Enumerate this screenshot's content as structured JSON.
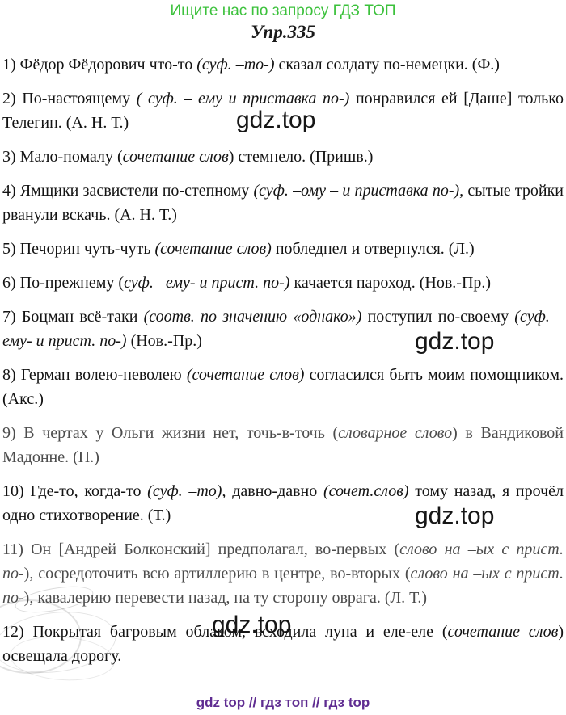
{
  "header": {
    "promo": "Ищите нас по запросу ГДЗ ТОП",
    "title": "Упр.335"
  },
  "watermark_text": "gdz.top",
  "footer": {
    "text": "gdz top  //  гдз топ  //  гдз top"
  },
  "colors": {
    "promo_green": "#3cc13c",
    "footer_purple": "#5f2c91",
    "text_black": "#131313"
  },
  "items": [
    {
      "parts": [
        "1) Фёдор Фёдорович что-то ",
        "(суф. –то-)",
        " сказал солдату по-немецки. (Ф.)"
      ]
    },
    {
      "parts": [
        "2) По-настоящему ",
        "( суф. – ему и приставка по-)",
        " понравился ей [Даше] только Телегин. (А. Н. Т.)"
      ]
    },
    {
      "parts": [
        "3) Мало-помалу (",
        "сочетание слов",
        ") стемнело. (Пришв.)"
      ]
    },
    {
      "parts": [
        "4) Ямщики засвистели по-степному ",
        "(суф. –ому – и приставка по-),",
        " сытые тройки рванули вскачь. (А. Н. Т.)"
      ]
    },
    {
      "parts": [
        "5) Печорин чуть-чуть ",
        "(сочетание слов)",
        " побледнел и отвернулся. (Л.)"
      ]
    },
    {
      "parts": [
        "6) По-прежнему (",
        "суф. –ему- и прист. по-)",
        " качается пароход. (Нов.-Пр.)"
      ]
    },
    {
      "parts": [
        "7) Боцман всё-таки ",
        "(соотв. по значению «однако»)",
        " поступил по-своему ",
        "(суф. –ему- и прист. по-)",
        " (Нов.-Пр.)"
      ]
    },
    {
      "parts": [
        "8) Герман волею-неволею ",
        "(сочетание слов)",
        " согласился быть моим помощником. (Акс.)"
      ]
    },
    {
      "parts": [
        "9) В чертах у Ольги жизни нет, точь-в-точь (",
        "словарное слово",
        ") в Вандиковой Мадонне. (П.)"
      ]
    },
    {
      "parts": [
        "10) Где-то, когда-то ",
        "(суф. –то)",
        ", давно-давно ",
        "(сочет.слов)",
        " тому назад, я прочёл одно стихотворение. (Т.)"
      ]
    },
    {
      "parts": [
        "11) Он [Андрей Болконский] предполагал, во-первых (",
        "слово на –ых с прист. по-",
        "), сосредоточить всю артиллерию в центре, во-вторых (",
        "слово на –ых с прист. по-",
        "), кавалерию перевести назад, на ту сторону оврага. (Л. Т.)"
      ]
    },
    {
      "parts": [
        "12) Покрытая багровым облаком, всходила луна и еле-еле (",
        "сочетание слов",
        ") освещала дорогу."
      ]
    }
  ]
}
